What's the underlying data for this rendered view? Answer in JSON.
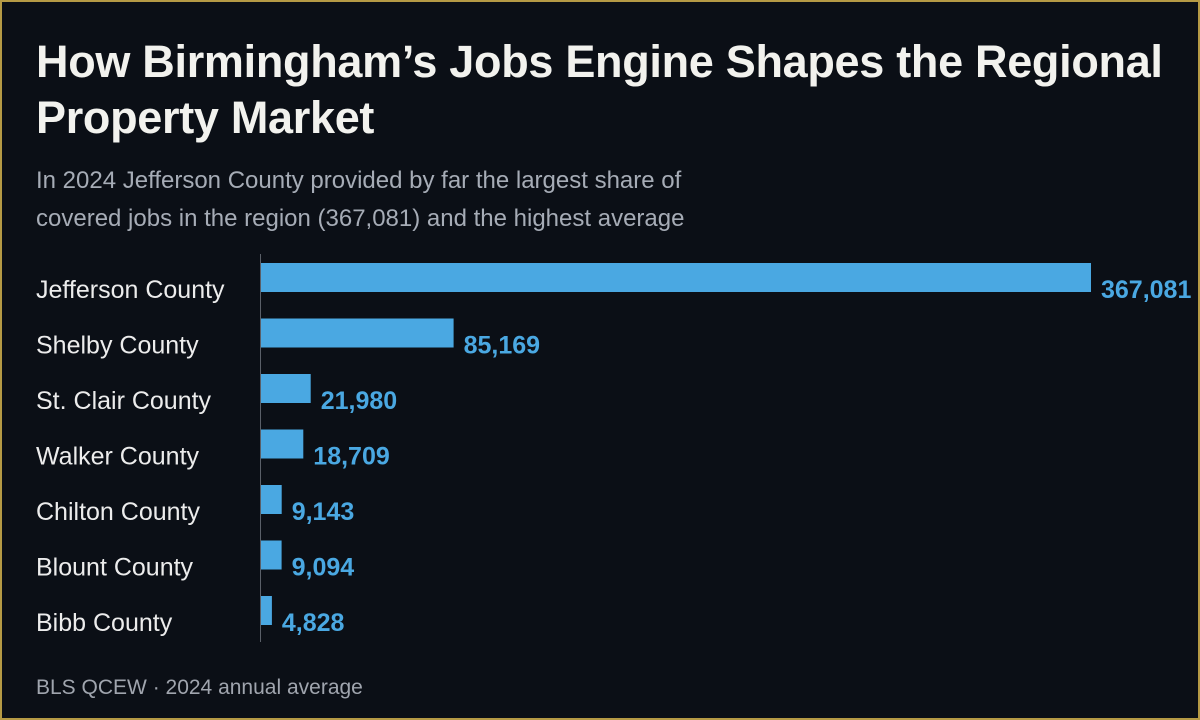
{
  "header": {
    "title": "How Birmingham’s Jobs Engine Shapes the Regional Property Market",
    "subtitle": "In 2024 Jefferson County provided by far the largest share of covered jobs in the region (367,081) and the highest average"
  },
  "footer": {
    "source": "BLS QCEW · 2024 annual average"
  },
  "colors": {
    "background": "#0b0f16",
    "border": "#b59a45",
    "bar": "#4aa8e2"
  },
  "chart_data": {
    "type": "bar",
    "orientation": "horizontal",
    "title": "How Birmingham’s Jobs Engine Shapes the Regional Property Market",
    "subtitle": "In 2024 Jefferson County provided by far the largest share of covered jobs in the region (367,081) and the highest average",
    "categories": [
      "Jefferson County",
      "Shelby County",
      "St. Clair County",
      "Walker County",
      "Chilton County",
      "Blount County",
      "Bibb County"
    ],
    "values": [
      367081,
      85169,
      21980,
      18709,
      9143,
      9094,
      4828
    ],
    "value_labels": [
      "367,081",
      "85,169",
      "21,980",
      "18,709",
      "9,143",
      "9,094",
      "4,828"
    ],
    "xlim": [
      0,
      367081
    ],
    "grid": false,
    "legend": "none"
  }
}
